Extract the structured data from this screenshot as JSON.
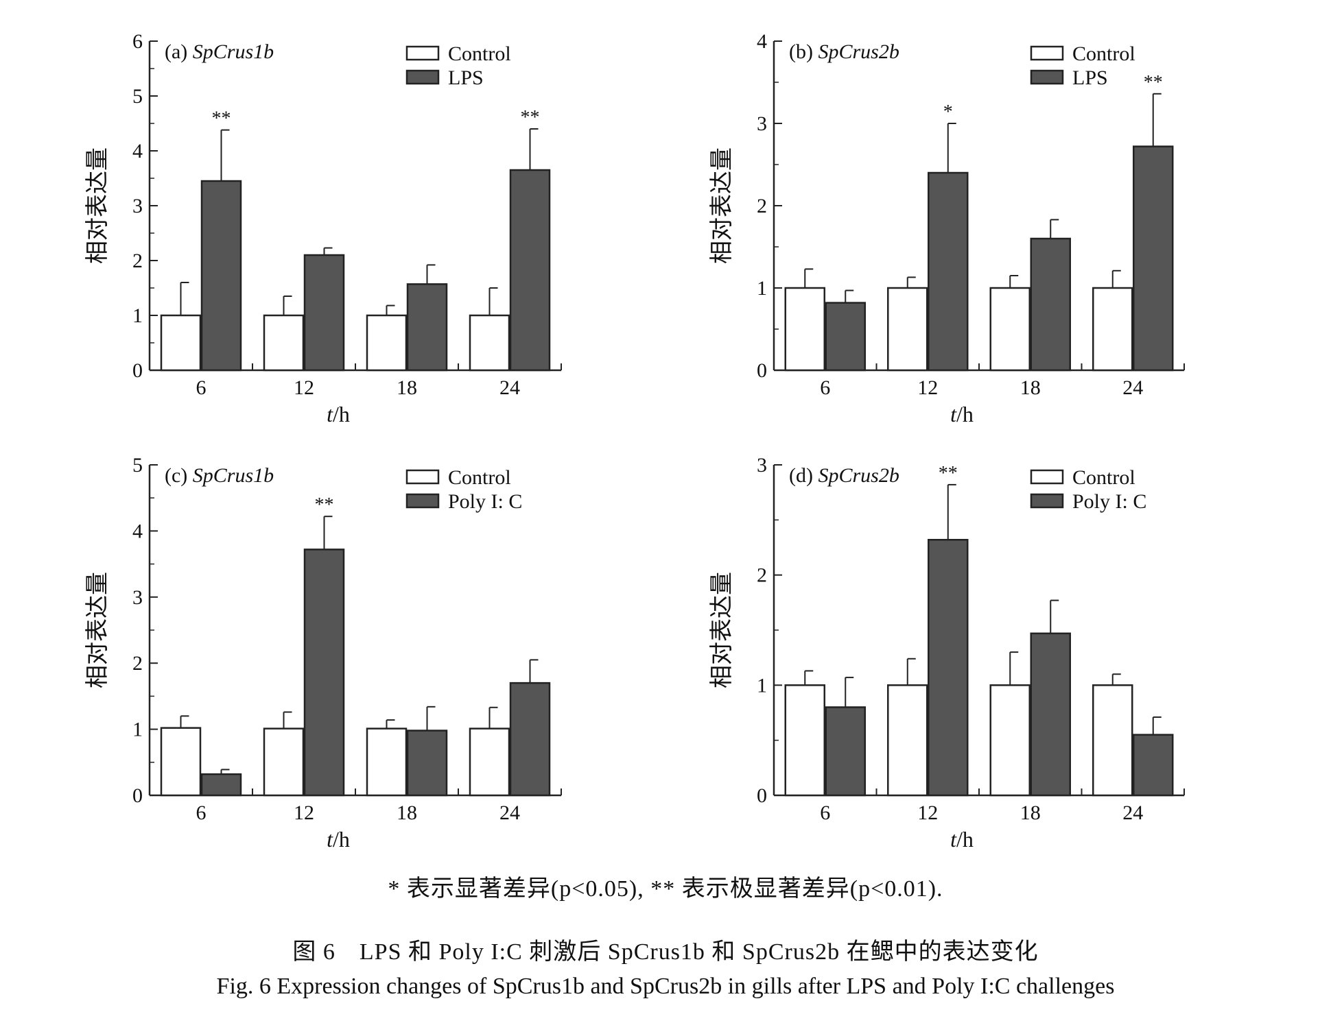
{
  "chart_data": [
    {
      "type": "bar",
      "panel_label": "(a) SpCrus1b",
      "categories": [
        "6",
        "12",
        "18",
        "24"
      ],
      "xlabel": "t/h",
      "ylabel": "相对表达量",
      "ylim": [
        0,
        6
      ],
      "yticks": [
        "0",
        "1",
        "2",
        "3",
        "4",
        "5",
        "6"
      ],
      "legend_position": "top-right",
      "series": [
        {
          "name": "Control",
          "values": [
            1.0,
            1.0,
            1.0,
            1.0
          ],
          "errors": [
            0.6,
            0.35,
            0.18,
            0.5
          ],
          "color": "#ffffff"
        },
        {
          "name": "LPS",
          "values": [
            3.45,
            2.1,
            1.57,
            3.65
          ],
          "errors": [
            0.93,
            0.13,
            0.35,
            0.75
          ],
          "color": "#555555",
          "significance": [
            "**",
            "",
            "",
            "**"
          ]
        }
      ]
    },
    {
      "type": "bar",
      "panel_label": "(b) SpCrus2b",
      "categories": [
        "6",
        "12",
        "18",
        "24"
      ],
      "xlabel": "t/h",
      "ylabel": "相对表达量",
      "ylim": [
        0,
        4
      ],
      "yticks": [
        "0",
        "1",
        "2",
        "3",
        "4"
      ],
      "legend_position": "top-right",
      "series": [
        {
          "name": "Control",
          "values": [
            1.0,
            1.0,
            1.0,
            1.0
          ],
          "errors": [
            0.23,
            0.13,
            0.15,
            0.21
          ],
          "color": "#ffffff"
        },
        {
          "name": "LPS",
          "values": [
            0.82,
            2.4,
            1.6,
            2.72
          ],
          "errors": [
            0.15,
            0.6,
            0.23,
            0.64
          ],
          "color": "#555555",
          "significance": [
            "",
            "*",
            "",
            "**"
          ]
        }
      ]
    },
    {
      "type": "bar",
      "panel_label": "(c) SpCrus1b",
      "categories": [
        "6",
        "12",
        "18",
        "24"
      ],
      "xlabel": "t/h",
      "ylabel": "相对表达量",
      "ylim": [
        0,
        5
      ],
      "yticks": [
        "0",
        "1",
        "2",
        "3",
        "4",
        "5"
      ],
      "legend_position": "top-right",
      "series": [
        {
          "name": "Control",
          "values": [
            1.02,
            1.01,
            1.01,
            1.01
          ],
          "errors": [
            0.18,
            0.25,
            0.13,
            0.32
          ],
          "color": "#ffffff"
        },
        {
          "name": "Poly I: C",
          "values": [
            0.32,
            3.72,
            0.98,
            1.7
          ],
          "errors": [
            0.07,
            0.5,
            0.36,
            0.35
          ],
          "color": "#555555",
          "significance": [
            "",
            "**",
            "",
            ""
          ]
        }
      ]
    },
    {
      "type": "bar",
      "panel_label": "(d) SpCrus2b",
      "categories": [
        "6",
        "12",
        "18",
        "24"
      ],
      "xlabel": "t/h",
      "ylabel": "相对表达量",
      "ylim": [
        0,
        3
      ],
      "yticks": [
        "0",
        "1",
        "2",
        "3"
      ],
      "legend_position": "top-right",
      "series": [
        {
          "name": "Control",
          "values": [
            1.0,
            1.0,
            1.0,
            1.0
          ],
          "errors": [
            0.13,
            0.24,
            0.3,
            0.1
          ],
          "color": "#ffffff"
        },
        {
          "name": "Poly I: C",
          "values": [
            0.8,
            2.32,
            1.47,
            0.55
          ],
          "errors": [
            0.27,
            0.5,
            0.3,
            0.16
          ],
          "color": "#555555",
          "significance": [
            "",
            "**",
            "",
            ""
          ]
        }
      ]
    }
  ],
  "footnote": "* 表示显著差异(p<0.05), ** 表示极显著差异(p<0.01).",
  "caption_zh": "图 6　LPS 和 Poly I:C 刺激后 SpCrus1b 和 SpCrus2b 在鳃中的表达变化",
  "caption_en": "Fig. 6  Expression changes of SpCrus1b and SpCrus2b in gills after LPS and Poly I:C challenges"
}
